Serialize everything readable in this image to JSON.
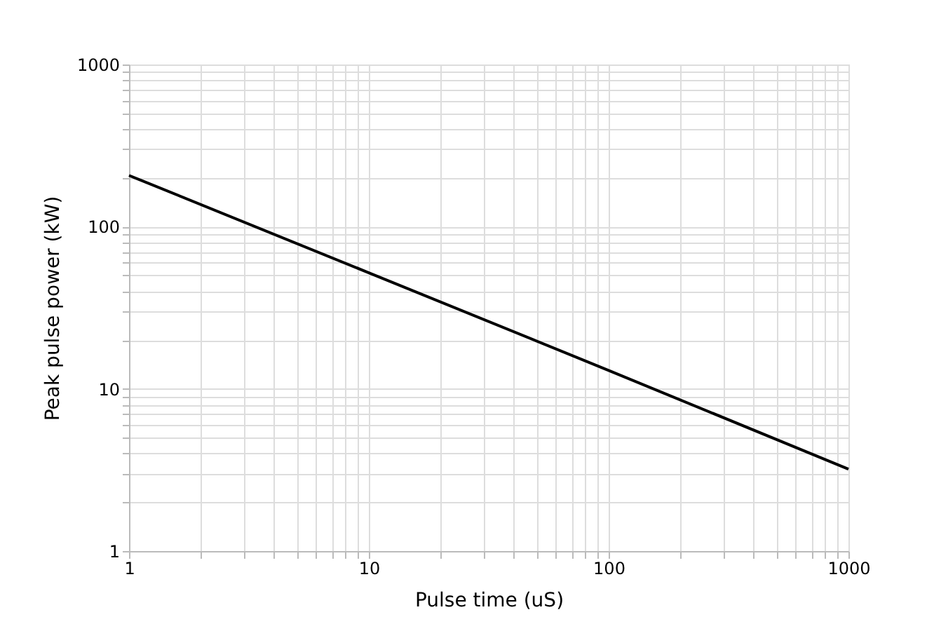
{
  "chart_data": {
    "type": "line",
    "xlabel": "Pulse time (uS)",
    "ylabel": "Peak pulse power (kW)",
    "x": [
      1,
      10,
      100,
      1000
    ],
    "series": [
      {
        "color": "#000000",
        "values": [
          207,
          52,
          13,
          3.2
        ]
      }
    ],
    "log": "xy",
    "grid": true,
    "marker": "none",
    "line_style": "solid",
    "xlim": [
      1,
      1000
    ],
    "ylim": [
      1,
      1000
    ],
    "xticks": [
      1,
      {
        "value": 2,
        "label": null
      },
      {
        "value": 3,
        "label": null
      },
      {
        "value": 4,
        "label": null
      },
      {
        "value": 5,
        "label": null
      },
      {
        "value": 6,
        "label": null
      },
      {
        "value": 7,
        "label": null
      },
      {
        "value": 8,
        "label": null
      },
      {
        "value": 9,
        "label": null
      },
      10,
      {
        "value": 20,
        "label": null
      },
      {
        "value": 30,
        "label": null
      },
      {
        "value": 40,
        "label": null
      },
      {
        "value": 50,
        "label": null
      },
      {
        "value": 60,
        "label": null
      },
      {
        "value": 70,
        "label": null
      },
      {
        "value": 80,
        "label": null
      },
      {
        "value": 90,
        "label": null
      },
      100,
      {
        "value": 200,
        "label": null
      },
      {
        "value": 300,
        "label": null
      },
      {
        "value": 400,
        "label": null
      },
      {
        "value": 500,
        "label": null
      },
      {
        "value": 600,
        "label": null
      },
      {
        "value": 700,
        "label": null
      },
      {
        "value": 800,
        "label": null
      },
      {
        "value": 900,
        "label": null
      },
      1000
    ],
    "yticks": [
      1,
      {
        "value": 2,
        "label": null
      },
      {
        "value": 3,
        "label": null
      },
      {
        "value": 4,
        "label": null
      },
      {
        "value": 5,
        "label": null
      },
      {
        "value": 6,
        "label": null
      },
      {
        "value": 7,
        "label": null
      },
      {
        "value": 8,
        "label": null
      },
      {
        "value": 9,
        "label": null
      },
      10,
      {
        "value": 20,
        "label": null
      },
      {
        "value": 30,
        "label": null
      },
      {
        "value": 40,
        "label": null
      },
      {
        "value": 50,
        "label": null
      },
      {
        "value": 60,
        "label": null
      },
      {
        "value": 70,
        "label": null
      },
      {
        "value": 80,
        "label": null
      },
      {
        "value": 90,
        "label": null
      },
      100,
      {
        "value": 200,
        "label": null
      },
      {
        "value": 300,
        "label": null
      },
      {
        "value": 400,
        "label": null
      },
      {
        "value": 500,
        "label": null
      },
      {
        "value": 600,
        "label": null
      },
      {
        "value": 700,
        "label": null
      },
      {
        "value": 800,
        "label": null
      },
      {
        "value": 900,
        "label": null
      },
      1000
    ]
  }
}
